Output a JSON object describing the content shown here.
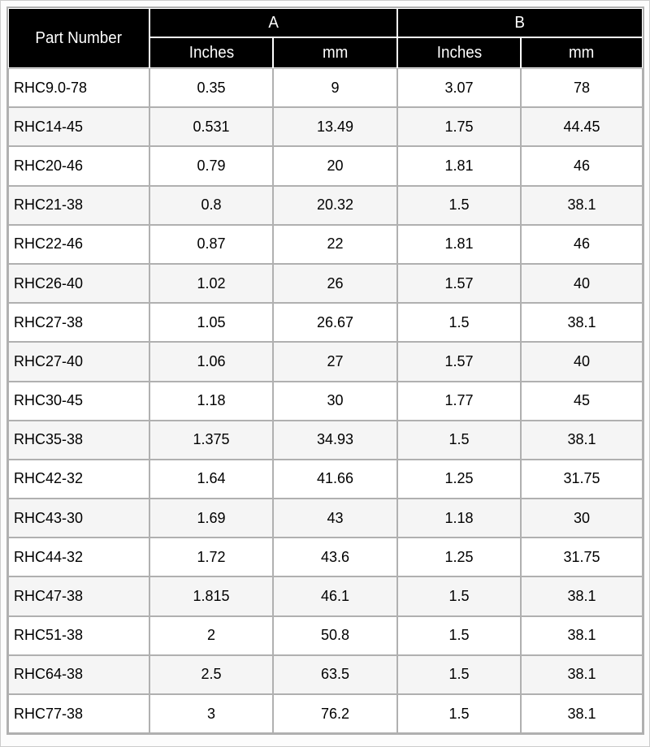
{
  "table": {
    "header": {
      "part_number": "Part Number",
      "group_a": "A",
      "group_b": "B",
      "a_inches": "Inches",
      "a_mm": "mm",
      "b_inches": "Inches",
      "b_mm": "mm"
    },
    "rows": [
      {
        "part": "RHC9.0-78",
        "a_in": "0.35",
        "a_mm": "9",
        "b_in": "3.07",
        "b_mm": "78"
      },
      {
        "part": "RHC14-45",
        "a_in": "0.531",
        "a_mm": "13.49",
        "b_in": "1.75",
        "b_mm": "44.45"
      },
      {
        "part": "RHC20-46",
        "a_in": "0.79",
        "a_mm": "20",
        "b_in": "1.81",
        "b_mm": "46"
      },
      {
        "part": "RHC21-38",
        "a_in": "0.8",
        "a_mm": "20.32",
        "b_in": "1.5",
        "b_mm": "38.1"
      },
      {
        "part": "RHC22-46",
        "a_in": "0.87",
        "a_mm": "22",
        "b_in": "1.81",
        "b_mm": "46"
      },
      {
        "part": "RHC26-40",
        "a_in": "1.02",
        "a_mm": "26",
        "b_in": "1.57",
        "b_mm": "40"
      },
      {
        "part": "RHC27-38",
        "a_in": "1.05",
        "a_mm": "26.67",
        "b_in": "1.5",
        "b_mm": "38.1"
      },
      {
        "part": "RHC27-40",
        "a_in": "1.06",
        "a_mm": "27",
        "b_in": "1.57",
        "b_mm": "40"
      },
      {
        "part": "RHC30-45",
        "a_in": "1.18",
        "a_mm": "30",
        "b_in": "1.77",
        "b_mm": "45"
      },
      {
        "part": "RHC35-38",
        "a_in": "1.375",
        "a_mm": "34.93",
        "b_in": "1.5",
        "b_mm": "38.1"
      },
      {
        "part": "RHC42-32",
        "a_in": "1.64",
        "a_mm": "41.66",
        "b_in": "1.25",
        "b_mm": "31.75"
      },
      {
        "part": "RHC43-30",
        "a_in": "1.69",
        "a_mm": "43",
        "b_in": "1.18",
        "b_mm": "30"
      },
      {
        "part": "RHC44-32",
        "a_in": "1.72",
        "a_mm": "43.6",
        "b_in": "1.25",
        "b_mm": "31.75"
      },
      {
        "part": "RHC47-38",
        "a_in": "1.815",
        "a_mm": "46.1",
        "b_in": "1.5",
        "b_mm": "38.1"
      },
      {
        "part": "RHC51-38",
        "a_in": "2",
        "a_mm": "50.8",
        "b_in": "1.5",
        "b_mm": "38.1"
      },
      {
        "part": "RHC64-38",
        "a_in": "2.5",
        "a_mm": "63.5",
        "b_in": "1.5",
        "b_mm": "38.1"
      },
      {
        "part": "RHC77-38",
        "a_in": "3",
        "a_mm": "76.2",
        "b_in": "1.5",
        "b_mm": "38.1"
      }
    ]
  },
  "colors": {
    "header_bg": "#000000",
    "header_text": "#ffffff",
    "table_border": "#b0b0b0",
    "row_bg": "#ffffff",
    "row_alt_bg": "#f5f5f5"
  }
}
